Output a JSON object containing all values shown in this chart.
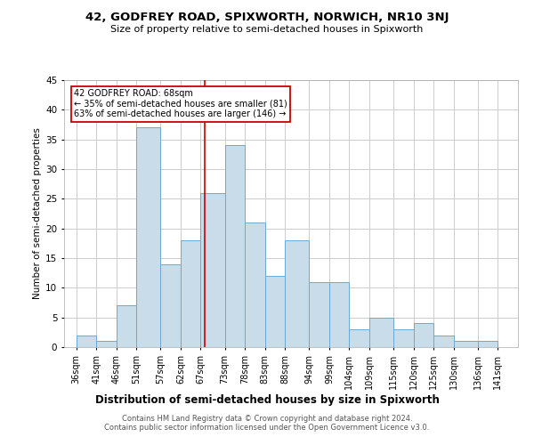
{
  "title1": "42, GODFREY ROAD, SPIXWORTH, NORWICH, NR10 3NJ",
  "title2": "Size of property relative to semi-detached houses in Spixworth",
  "xlabel": "Distribution of semi-detached houses by size in Spixworth",
  "ylabel": "Number of semi-detached properties",
  "bin_edges": [
    36,
    41,
    46,
    51,
    57,
    62,
    67,
    73,
    78,
    83,
    88,
    94,
    99,
    104,
    109,
    115,
    120,
    125,
    130,
    136,
    141
  ],
  "bar_heights": [
    2,
    1,
    7,
    37,
    14,
    18,
    26,
    34,
    21,
    12,
    18,
    11,
    11,
    3,
    5,
    3,
    4,
    2,
    1,
    1
  ],
  "bar_color": "#c9dcea",
  "bar_edge_color": "#6aaad4",
  "property_size": 68,
  "property_label": "42 GODFREY ROAD: 68sqm",
  "smaller_pct": "35% of semi-detached houses are smaller (81)",
  "larger_pct": "63% of semi-detached houses are larger (146)",
  "vline_color": "#cc0000",
  "annotation_box_edge": "#cc0000",
  "ylim": [
    0,
    45
  ],
  "yticks": [
    0,
    5,
    10,
    15,
    20,
    25,
    30,
    35,
    40,
    45
  ],
  "tick_labels": [
    "36sqm",
    "41sqm",
    "46sqm",
    "51sqm",
    "57sqm",
    "62sqm",
    "67sqm",
    "73sqm",
    "78sqm",
    "83sqm",
    "88sqm",
    "94sqm",
    "99sqm",
    "104sqm",
    "109sqm",
    "115sqm",
    "120sqm",
    "125sqm",
    "130sqm",
    "136sqm",
    "141sqm"
  ],
  "footer": "Contains HM Land Registry data © Crown copyright and database right 2024.\nContains public sector information licensed under the Open Government Licence v3.0.",
  "title1_fontsize": 9.5,
  "title2_fontsize": 8.0,
  "ylabel_fontsize": 7.5,
  "xlabel_fontsize": 8.5,
  "tick_fontsize": 7.0,
  "footer_fontsize": 6.0
}
